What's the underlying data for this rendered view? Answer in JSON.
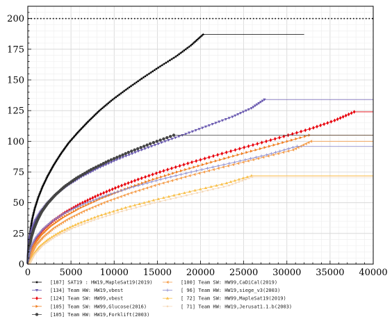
{
  "chart_data": {
    "type": "line",
    "title": "",
    "xlabel": "",
    "ylabel": "",
    "xlim": [
      0,
      40000
    ],
    "ylim": [
      0,
      210
    ],
    "xticks": [
      0,
      5000,
      10000,
      15000,
      20000,
      25000,
      30000,
      35000,
      40000
    ],
    "xtick_labels": [
      "0",
      "5000",
      "10000",
      "15000",
      "20000",
      "25000",
      "30000",
      "35000",
      "40000"
    ],
    "yticks": [
      0,
      25,
      50,
      75,
      100,
      125,
      150,
      175,
      200
    ],
    "ytick_labels": [
      "0",
      "25",
      "50",
      "75",
      "100",
      "125",
      "150",
      "175",
      "200"
    ],
    "grid": true,
    "legend_position": "bottom",
    "reference_line": {
      "y": 200,
      "style": "dotted",
      "color": "#000000"
    },
    "series": [
      {
        "name": "[187] SAT19  : HW19,MapleSat19(2019)",
        "color": "#000000",
        "marker": "star",
        "solve_times": [
          20,
          60,
          150,
          300,
          500,
          800,
          1200,
          1700,
          2300,
          3000,
          3800,
          4700,
          5800,
          7000,
          8300,
          9800,
          11500,
          13300,
          15200,
          17200,
          18900,
          20300
        ],
        "tail_x": 32000
      },
      {
        "name": "[134] Team HW: HW19,vbest",
        "color": "#6a5ab0",
        "marker": "tri-down",
        "solve_times": [
          10,
          40,
          100,
          250,
          500,
          900,
          1500,
          2300,
          3300,
          4600,
          6200,
          8100,
          10300,
          12800,
          15500,
          18300,
          21000,
          23700,
          25900,
          27400
        ],
        "tail_x": 40000
      },
      {
        "name": "[124] Team SW: HW99,vbest",
        "color": "#e8000b",
        "marker": "diamond",
        "solve_times": [
          50,
          200,
          500,
          1000,
          1800,
          2900,
          4300,
          6000,
          8000,
          10300,
          12900,
          15800,
          19000,
          22400,
          25900,
          29400,
          32800,
          35600,
          37800
        ],
        "tail_x": 40000
      },
      {
        "name": "[105] Team SW: HW99,Glucose(2016)",
        "color": "#f07f23",
        "marker": "tri-right",
        "solve_times": [
          80,
          300,
          750,
          1500,
          2600,
          4100,
          6000,
          8300,
          11000,
          14000,
          17400,
          21100,
          24900,
          28800,
          32600
        ],
        "tail_x": 40000
      },
      {
        "name": "[105] Team HW: HW19,Forklift(2003)",
        "color": "#444444",
        "marker": "circle",
        "solve_times": [
          20,
          80,
          200,
          400,
          700,
          1100,
          1600,
          2300,
          3200,
          4300,
          5700,
          7400,
          9400,
          11700,
          14200,
          16900
        ],
        "tail_x": 40000
      },
      {
        "name": "[100] Team SW: HW99,CaDiCal(2019)",
        "color": "#f5a050",
        "marker": "tri-left",
        "solve_times": [
          120,
          400,
          900,
          1800,
          3000,
          4600,
          6600,
          9000,
          11800,
          15000,
          18600,
          22500,
          26600,
          30700,
          32800
        ],
        "tail_x": 40000
      },
      {
        "name": "[ 96] Team HW: HW19,siege_v3(2003)",
        "color": "#8888cc",
        "marker": "plus",
        "solve_times": [
          30,
          150,
          400,
          900,
          1700,
          2800,
          4300,
          6300,
          8800,
          11800,
          15300,
          19300,
          23600,
          27800,
          31200
        ],
        "tail_x": 40000
      },
      {
        "name": "[ 72] Team SW: HW99,MapleSat19(2019)",
        "color": "#f9c04a",
        "marker": "tri-up",
        "solve_times": [
          200,
          600,
          1300,
          2400,
          3900,
          5900,
          8400,
          11400,
          14900,
          18800,
          22800,
          25900
        ],
        "tail_x": 40000
      },
      {
        "name": "[ 71] Team HW: HW19,Jerusat1.1.b(2003)",
        "color": "#f6d8b8",
        "marker": "dot",
        "solve_times": [
          250,
          800,
          1700,
          3100,
          5100,
          7700,
          10900,
          14700,
          19000,
          23300,
          26000
        ],
        "tail_x": 40000
      }
    ],
    "series_final_counts": [
      187,
      134,
      124,
      105,
      105,
      100,
      96,
      72,
      71
    ]
  }
}
